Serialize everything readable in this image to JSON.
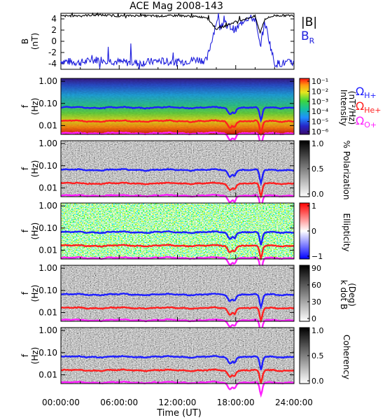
{
  "title": "ACE Mag 2008-143",
  "xlabel": "Time (UT)",
  "x_ticks": [
    "00:00:00",
    "06:00:00",
    "12:00:00",
    "18:00:00",
    "24:00:00"
  ],
  "top_legend": {
    "b_total": "|B|",
    "b_r_main": "B",
    "b_r_sub": "R"
  },
  "freq_ticks": [
    "1.00",
    "0.10",
    "0.01"
  ],
  "freq_label_top": "f",
  "freq_label_bottom": "(Hz)",
  "gyro_legend": [
    {
      "main": "Ω",
      "sub": "H+",
      "color": "#1f1fff"
    },
    {
      "main": "Ω",
      "sub": "He+",
      "color": "#ff2020"
    },
    {
      "main": "Ω",
      "sub": "O+",
      "color": "#ff20ff"
    }
  ],
  "colors": {
    "b_total": "#000000",
    "b_r": "#2020dd",
    "h_plus": "#1f1fff",
    "he_plus": "#ff2020",
    "o_plus": "#ff20ff"
  },
  "panels": [
    {
      "id": "intensity",
      "colorbar": "rainbow",
      "label1": "Intensity",
      "label2": "(nT²/Hz)",
      "cb_ticks": [
        "10⁻¹",
        "10⁻²",
        "10⁻³",
        "10⁻⁴",
        "10⁻⁵",
        "10⁻⁶"
      ]
    },
    {
      "id": "polarization",
      "colorbar": "grayscale",
      "label1": "% Polarization",
      "label2": "",
      "cb_ticks": [
        "1.0",
        "0.5",
        "0.0"
      ]
    },
    {
      "id": "ellipticity",
      "colorbar": "bluewhitered",
      "label1": "Ellipticity",
      "label2": "",
      "cb_ticks": [
        "1",
        "0",
        "−1"
      ]
    },
    {
      "id": "kdotb",
      "colorbar": "grayscale",
      "label1": "k dot B",
      "label2": "(Deg)",
      "cb_ticks": [
        "90",
        "60",
        "30",
        "0"
      ]
    },
    {
      "id": "coherency",
      "colorbar": "grayscale",
      "label1": "Coherency",
      "label2": "",
      "cb_ticks": [
        "1.0",
        "0.5",
        "0.0"
      ]
    }
  ],
  "chart_data": {
    "type": "line",
    "title": "ACE Mag 2008-143",
    "xlabel": "Time (UT)",
    "ylabel": "B (nT)",
    "ylim": [
      -5,
      5
    ],
    "y_ticks": [
      4,
      2,
      0,
      -2,
      -4
    ],
    "x": [
      0,
      2,
      4,
      6,
      8,
      10,
      12,
      14,
      15,
      16,
      17,
      18,
      19,
      20,
      20.5,
      21,
      22,
      24
    ],
    "series": [
      {
        "name": "|B|",
        "values": [
          4.5,
          4.6,
          4.7,
          4.5,
          4.6,
          4.5,
          4.6,
          4.4,
          4.3,
          2.2,
          2.8,
          3.5,
          4.0,
          4.5,
          1.5,
          4.0,
          4.6,
          4.6
        ]
      },
      {
        "name": "BR",
        "values": [
          -3.5,
          -3.8,
          -3.2,
          -3.7,
          -3.9,
          -3.5,
          -3.8,
          -3.2,
          -3.5,
          3.5,
          3.0,
          2.0,
          4.2,
          4.0,
          -1.0,
          3.5,
          -4.0,
          -3.8
        ]
      }
    ]
  }
}
